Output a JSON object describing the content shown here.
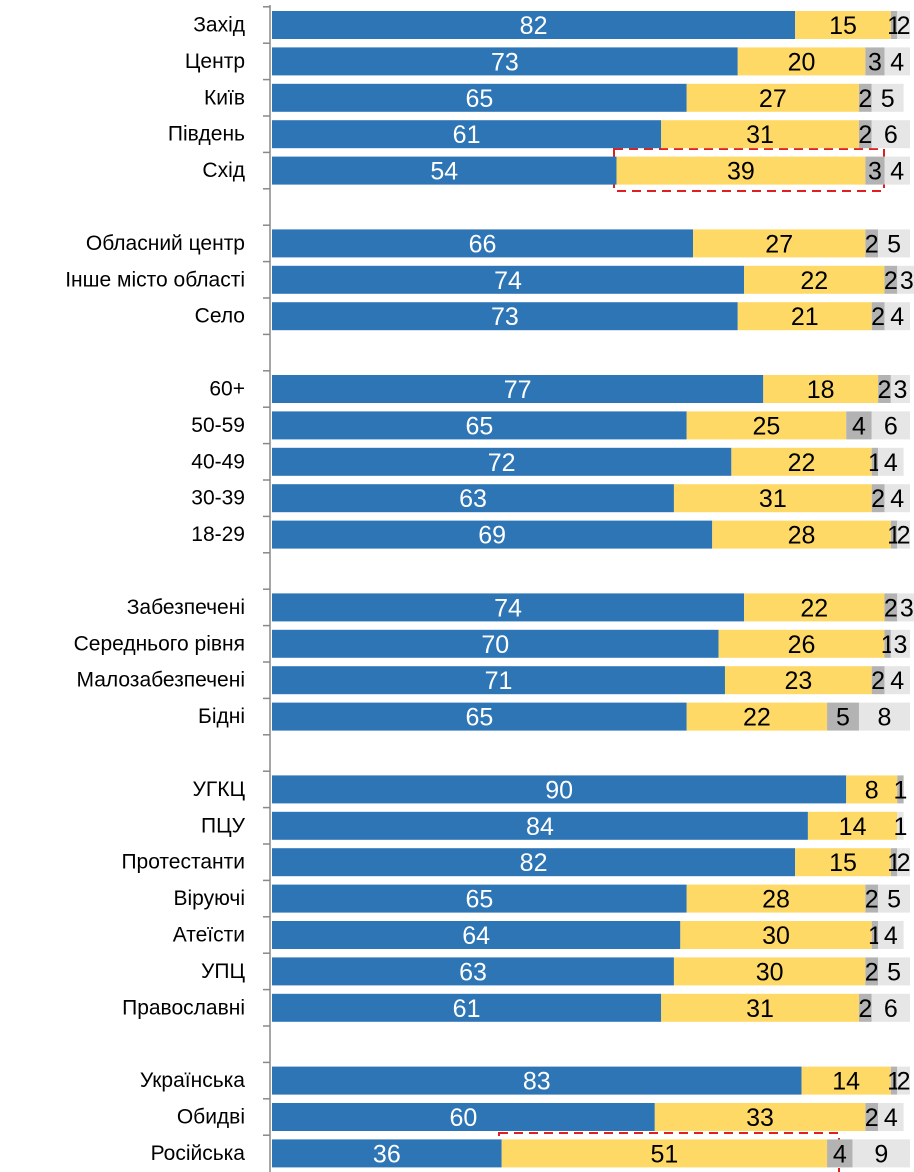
{
  "chart_data": {
    "type": "stacked_bar_horizontal",
    "categories": [
      "Захід",
      "Центр",
      "Київ",
      "Південь",
      "Схід",
      null,
      "Обласний центр",
      "Інше місто області",
      "Село",
      null,
      "60+",
      "50-59",
      "40-49",
      "30-39",
      "18-29",
      null,
      "Забезпечені",
      "Середнього рівня",
      "Малозабезпечені",
      "Бідні",
      null,
      "УГКЦ",
      "ПЦУ",
      "Протестанти",
      "Віруючі",
      "Атеїсти",
      "УПЦ",
      "Православні",
      null,
      "Українська",
      "Обидві",
      "Російська"
    ],
    "series": [
      {
        "color": "#2e75b6",
        "label_color": "#ffffff",
        "values": [
          82,
          73,
          65,
          61,
          54,
          null,
          66,
          74,
          73,
          null,
          77,
          65,
          72,
          63,
          69,
          null,
          74,
          70,
          71,
          65,
          null,
          90,
          84,
          82,
          65,
          64,
          63,
          61,
          null,
          83,
          60,
          36
        ]
      },
      {
        "color": "#ffd966",
        "label_color": "#000000",
        "values": [
          15,
          20,
          27,
          31,
          39,
          null,
          27,
          22,
          21,
          null,
          18,
          25,
          22,
          31,
          28,
          null,
          22,
          26,
          23,
          22,
          null,
          8,
          14,
          15,
          28,
          30,
          30,
          31,
          null,
          14,
          33,
          51
        ]
      },
      {
        "color": "#b3b3b3",
        "label_color": "#000000",
        "values": [
          1,
          3,
          2,
          2,
          3,
          null,
          2,
          2,
          2,
          null,
          2,
          4,
          1,
          2,
          1,
          null,
          2,
          1,
          2,
          5,
          null,
          1,
          null,
          1,
          2,
          1,
          2,
          2,
          null,
          1,
          2,
          4
        ]
      },
      {
        "color": "#e6e6e6",
        "label_color": "#000000",
        "values": [
          2,
          4,
          5,
          6,
          4,
          null,
          5,
          3,
          4,
          null,
          3,
          6,
          4,
          4,
          2,
          null,
          3,
          3,
          4,
          8,
          null,
          null,
          1,
          2,
          5,
          4,
          5,
          6,
          null,
          2,
          4,
          9
        ]
      }
    ],
    "xlim": [
      0,
      100
    ]
  }
}
